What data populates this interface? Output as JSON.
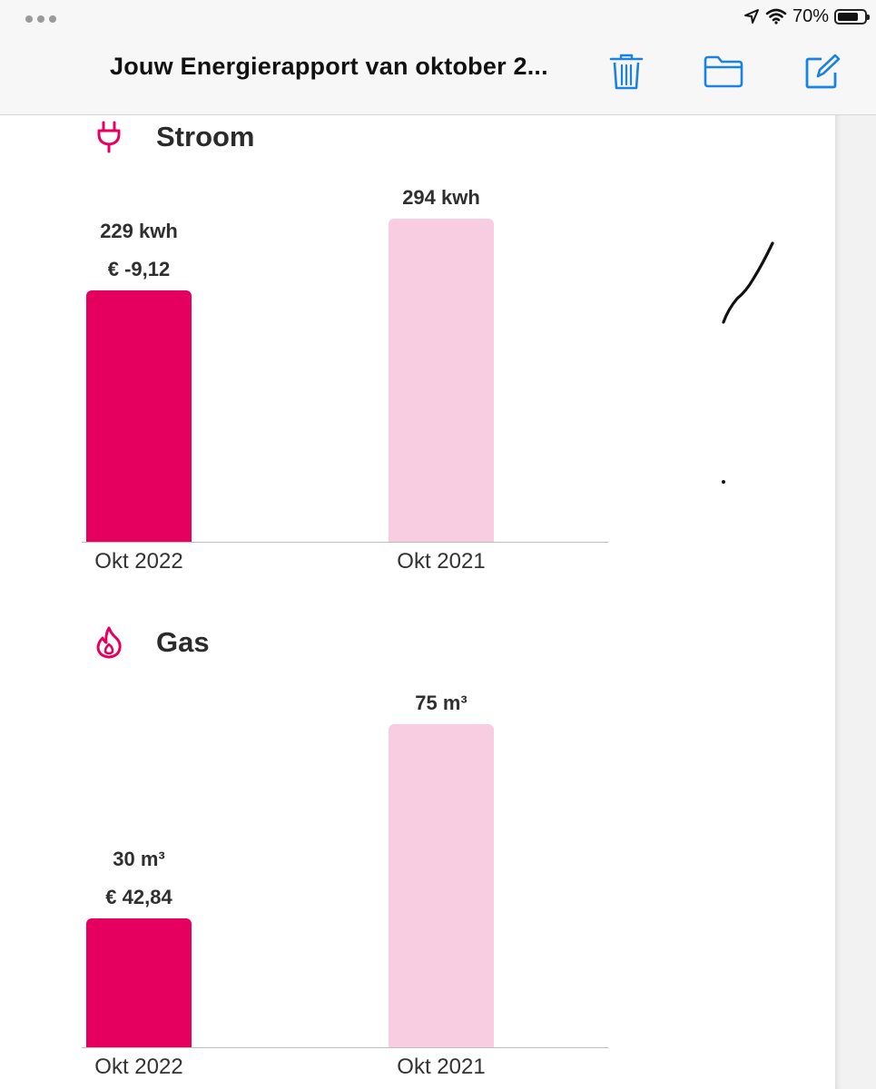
{
  "window": {
    "title": "Jouw Energierapport van oktober 2...",
    "battery_percent": "70%",
    "status_icons": [
      "location-arrow-icon",
      "wifi-icon",
      "battery-icon"
    ]
  },
  "toolbar": {
    "buttons": [
      {
        "name": "delete",
        "icon": "trash-icon"
      },
      {
        "name": "folder",
        "icon": "folder-icon"
      },
      {
        "name": "compose",
        "icon": "compose-icon"
      }
    ]
  },
  "colors": {
    "accent": "#e5005f",
    "accent_light": "#f8cde1",
    "ios_blue": "#1a82e2"
  },
  "sections": [
    {
      "title": "Stroom",
      "icon": "plug-icon",
      "chart_data": {
        "type": "bar",
        "categories": [
          "Okt 2022",
          "Okt 2021"
        ],
        "unit": "kwh",
        "values": [
          229,
          294
        ],
        "value_labels": [
          "229 kwh",
          "294 kwh"
        ],
        "cost_labels": [
          "€ -9,12",
          ""
        ]
      }
    },
    {
      "title": "Gas",
      "icon": "flame-icon",
      "chart_data": {
        "type": "bar",
        "categories": [
          "Okt 2022",
          "Okt 2021"
        ],
        "unit": "m³",
        "values": [
          30,
          75
        ],
        "value_labels": [
          "30 m³",
          "75 m³"
        ],
        "cost_labels": [
          "€ 42,84",
          ""
        ]
      }
    }
  ]
}
